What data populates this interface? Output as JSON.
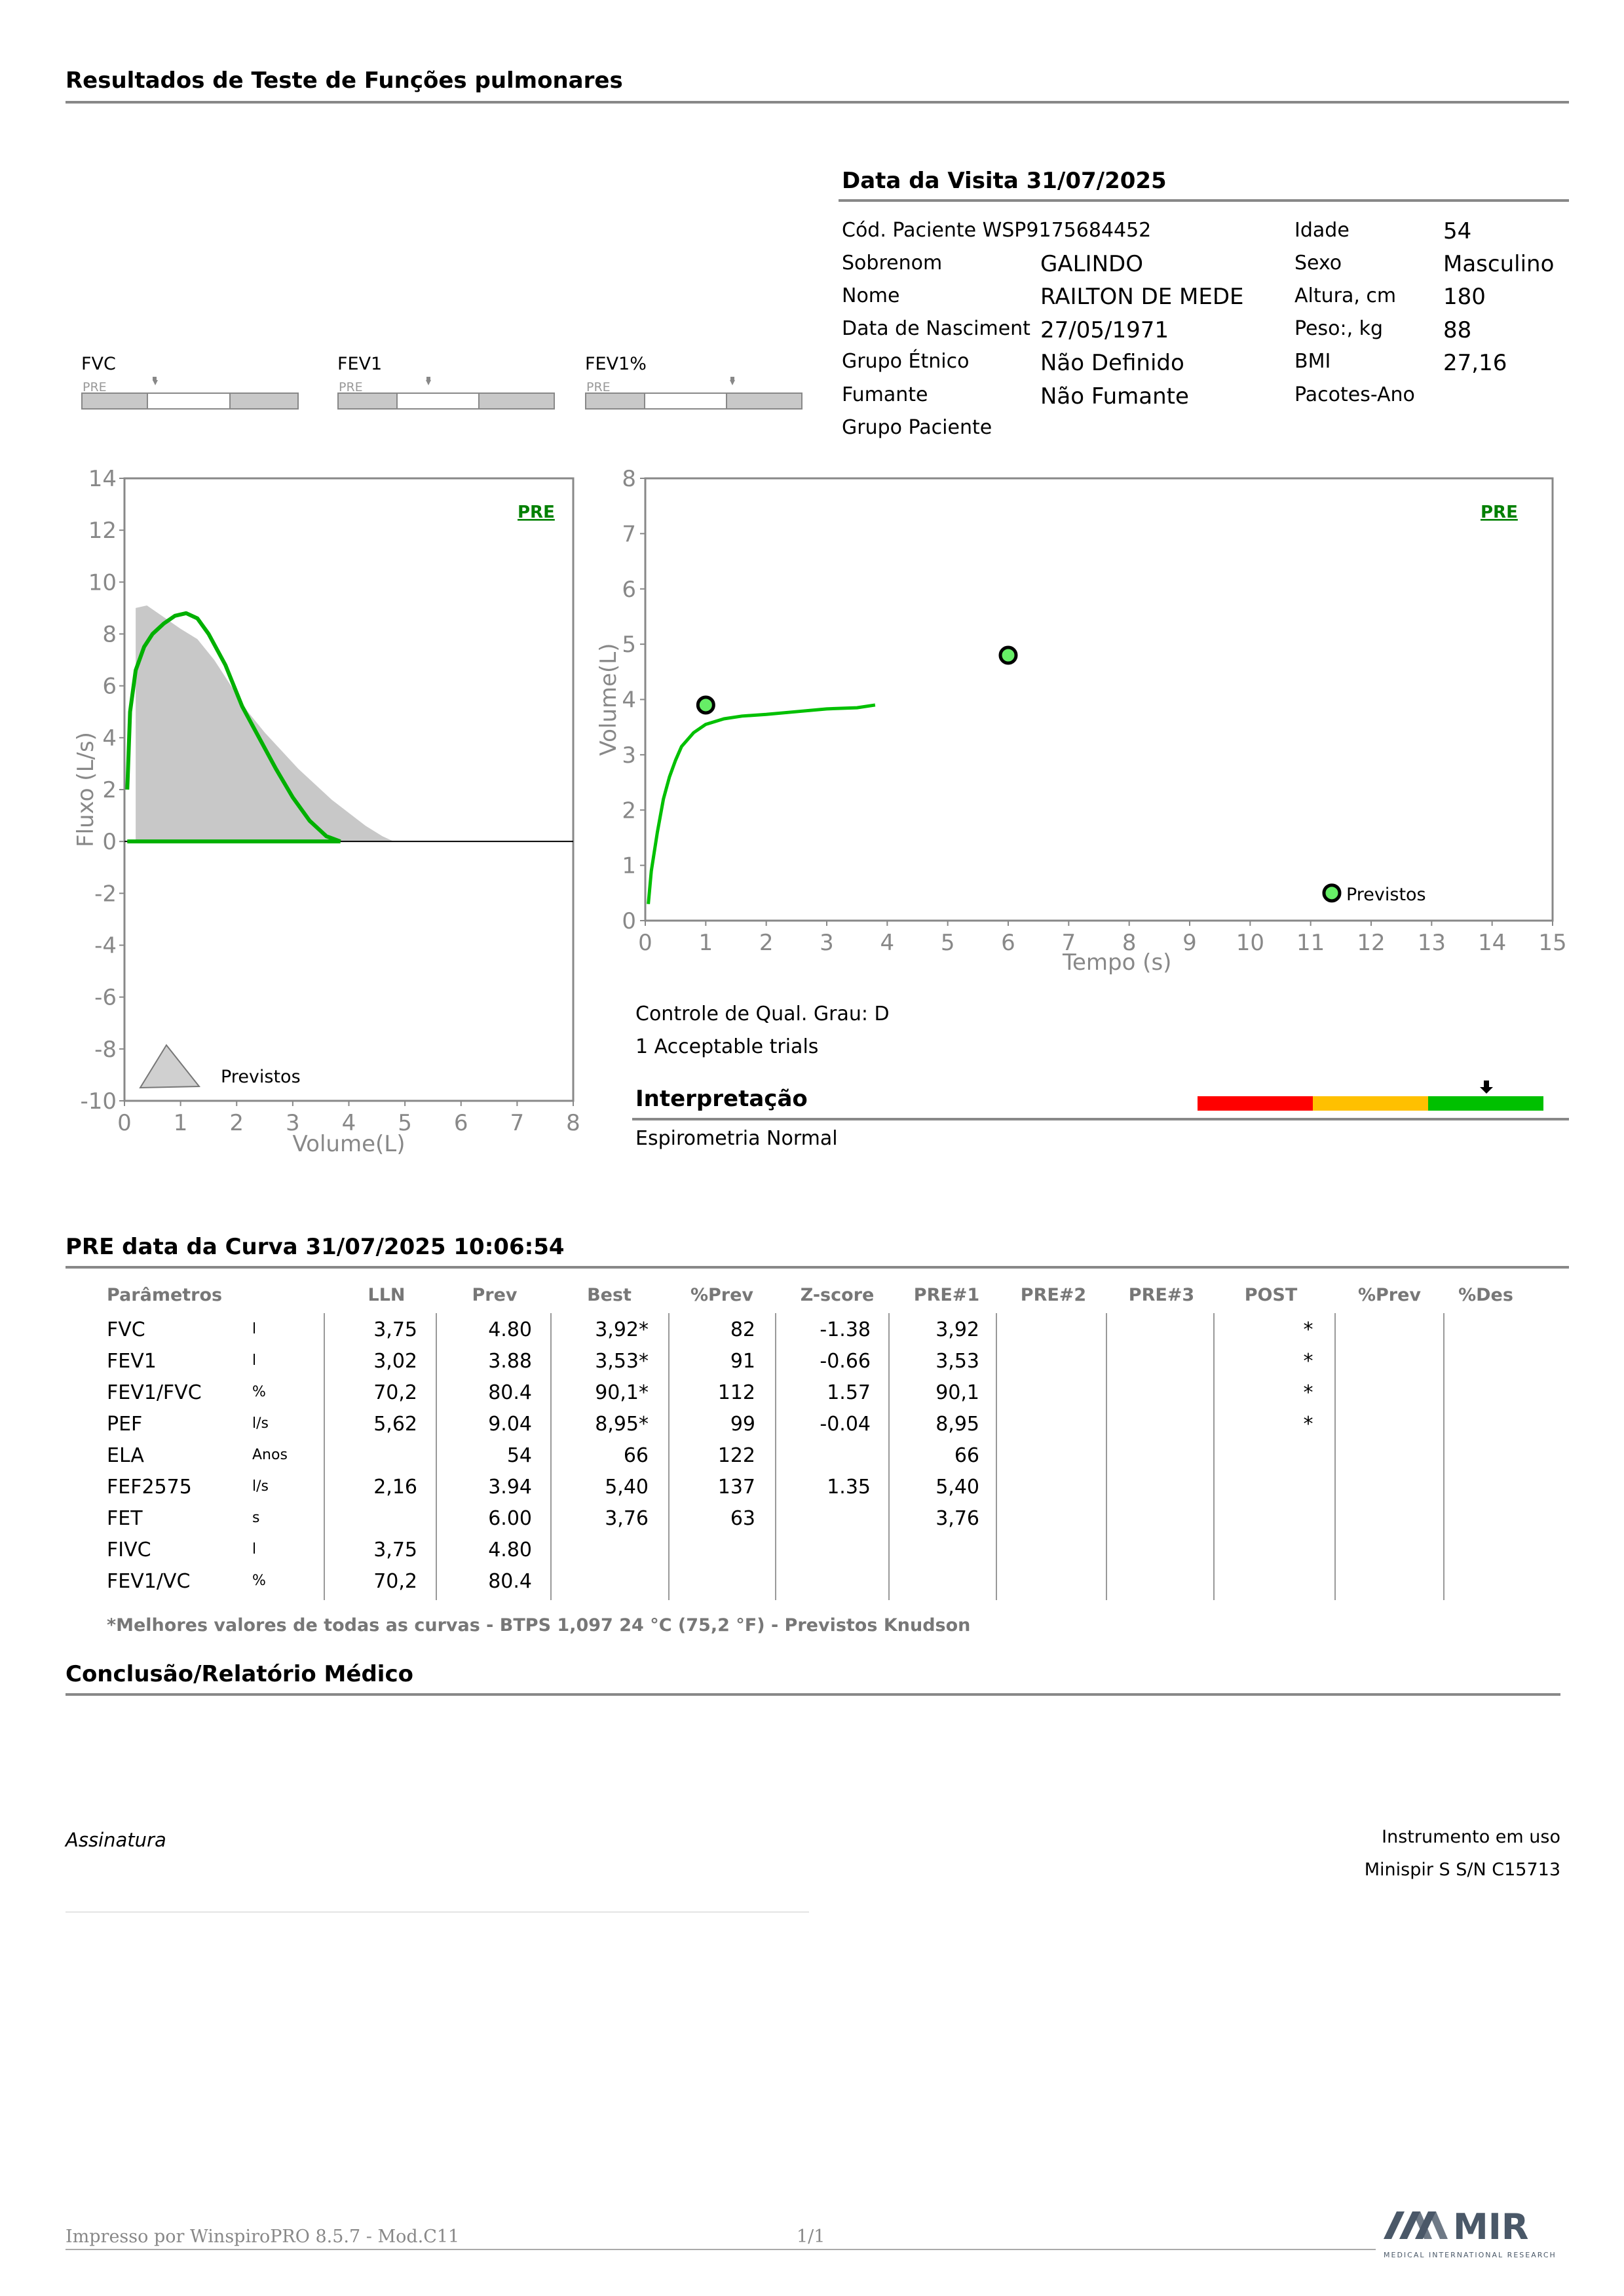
{
  "header": {
    "title": "Resultados de Teste de Funções pulmonares"
  },
  "visit": {
    "title": "Data da Visita 31/07/2025",
    "patient_code": "Cód. Paciente WSP9175684452",
    "surname_label": "Sobrenom",
    "surname": "GALINDO",
    "name_label": "Nome",
    "name": "RAILTON DE MEDE",
    "dob_label": "Data de Nasciment",
    "dob": "27/05/1971",
    "ethnic_label": "Grupo Étnico",
    "ethnic": "Não Definido",
    "smoker_label": "Fumante",
    "smoker": "Não Fumante",
    "group_label": "Grupo Paciente",
    "age_label": "Idade",
    "age": "54",
    "sex_label": "Sexo",
    "sex": "Masculino",
    "height_label": "Altura, cm",
    "height": "180",
    "weight_label": "Peso:, kg",
    "weight": "88",
    "bmi_label": "BMI",
    "bmi": "27,16",
    "packyears_label": "Pacotes-Ano"
  },
  "gauges": [
    {
      "label": "FVC",
      "pre": "PRE"
    },
    {
      "label": "FEV1",
      "pre": "PRE"
    },
    {
      "label": "FEV1%",
      "pre": "PRE"
    }
  ],
  "chart_data": [
    {
      "type": "line",
      "chart": "flow-volume",
      "badge": "PRE",
      "xlabel": "Volume(L)",
      "ylabel": "Fluxo (L/s)",
      "xlim": [
        0,
        8
      ],
      "ylim": [
        -10,
        14
      ],
      "x_ticks": [
        "0",
        "1",
        "2",
        "3",
        "4",
        "5",
        "6",
        "7",
        "8"
      ],
      "y_ticks": [
        "14",
        "12",
        "10",
        "8",
        "6",
        "4",
        "2",
        "0",
        "-2",
        "-4",
        "-6",
        "-8",
        "-10"
      ],
      "legend": "Previstos",
      "series": [
        {
          "x": [
            0.05,
            0.1,
            0.2,
            0.35,
            0.5,
            0.7,
            0.9,
            1.1,
            1.3,
            1.5,
            1.8,
            2.1,
            2.4,
            2.7,
            3.0,
            3.3,
            3.6,
            3.85
          ],
          "y": [
            2.0,
            5.0,
            6.6,
            7.5,
            8.0,
            8.4,
            8.7,
            8.8,
            8.6,
            8.0,
            6.8,
            5.2,
            4.0,
            2.8,
            1.7,
            0.8,
            0.2,
            0
          ]
        },
        {
          "x": [
            3.85,
            0.05
          ],
          "y": [
            0,
            0
          ]
        }
      ],
      "predicted_area": {
        "x": [
          0.2,
          0.4,
          0.6,
          0.8,
          1.0,
          1.3,
          1.6,
          1.9,
          2.2,
          2.5,
          2.8,
          3.1,
          3.4,
          3.7,
          4.0,
          4.3,
          4.6,
          4.8
        ],
        "y": [
          9.0,
          9.1,
          8.8,
          8.5,
          8.2,
          7.8,
          7.0,
          6.0,
          5.0,
          4.2,
          3.5,
          2.8,
          2.2,
          1.6,
          1.1,
          0.6,
          0.2,
          0
        ]
      }
    },
    {
      "type": "line",
      "chart": "volume-time",
      "badge": "PRE",
      "xlabel": "Tempo (s)",
      "ylabel": "Volume(L)",
      "xlim": [
        0,
        15
      ],
      "ylim": [
        0,
        8
      ],
      "x_ticks": [
        "0",
        "1",
        "2",
        "3",
        "4",
        "5",
        "6",
        "7",
        "8",
        "9",
        "10",
        "11",
        "12",
        "13",
        "14",
        "15"
      ],
      "y_ticks": [
        "8",
        "7",
        "6",
        "5",
        "4",
        "3",
        "2",
        "1",
        "0"
      ],
      "series": [
        {
          "x": [
            0.05,
            0.1,
            0.2,
            0.3,
            0.4,
            0.5,
            0.6,
            0.8,
            1.0,
            1.3,
            1.6,
            2.0,
            2.5,
            3.0,
            3.5,
            3.8
          ],
          "y": [
            0.3,
            0.9,
            1.6,
            2.2,
            2.6,
            2.9,
            3.15,
            3.4,
            3.55,
            3.65,
            3.7,
            3.73,
            3.78,
            3.83,
            3.85,
            3.9
          ]
        }
      ],
      "markers": [
        {
          "x": 1.0,
          "y": 3.9
        },
        {
          "x": 6.0,
          "y": 4.8
        },
        {
          "x": 11.35,
          "y": 0.5
        }
      ],
      "legend": "Previstos"
    }
  ],
  "quality": {
    "grade": "Controle de Qual. Grau: D",
    "trials": "1 Acceptable trials",
    "interpretation_title": "Interpretação",
    "interpretation": "Espirometria Normal",
    "scale_colors": [
      "#ff0000",
      "#ffc000",
      "#00c000"
    ]
  },
  "curve": {
    "title": "PRE data da Curva 31/07/2025   10:06:54",
    "headers": [
      "Parâmetros",
      "LLN",
      "Prev",
      "Best",
      "%Prev",
      "Z-score",
      "PRE#1",
      "PRE#2",
      "PRE#3",
      "POST",
      "%Prev",
      "%Des"
    ],
    "rows": [
      {
        "p": "FVC",
        "u": "l",
        "lln": "3,75",
        "prev": "4.80",
        "best": "3,92*",
        "pprev": "82",
        "z": "-1.38",
        "pre1": "3,92",
        "post": "*"
      },
      {
        "p": "FEV1",
        "u": "l",
        "lln": "3,02",
        "prev": "3.88",
        "best": "3,53*",
        "pprev": "91",
        "z": "-0.66",
        "pre1": "3,53",
        "post": "*"
      },
      {
        "p": "FEV1/FVC",
        "u": "%",
        "lln": "70,2",
        "prev": "80.4",
        "best": "90,1*",
        "pprev": "112",
        "z": "1.57",
        "pre1": "90,1",
        "post": "*"
      },
      {
        "p": "PEF",
        "u": "l/s",
        "lln": "5,62",
        "prev": "9.04",
        "best": "8,95*",
        "pprev": "99",
        "z": "-0.04",
        "pre1": "8,95",
        "post": "*"
      },
      {
        "p": "ELA",
        "u": "Anos",
        "lln": "",
        "prev": "54",
        "best": "66",
        "pprev": "122",
        "z": "",
        "pre1": "66",
        "post": ""
      },
      {
        "p": "FEF2575",
        "u": "l/s",
        "lln": "2,16",
        "prev": "3.94",
        "best": "5,40",
        "pprev": "137",
        "z": "1.35",
        "pre1": "5,40",
        "post": ""
      },
      {
        "p": "FET",
        "u": "s",
        "lln": "",
        "prev": "6.00",
        "best": "3,76",
        "pprev": "63",
        "z": "",
        "pre1": "3,76",
        "post": ""
      },
      {
        "p": "FIVC",
        "u": "l",
        "lln": "3,75",
        "prev": "4.80",
        "best": "",
        "pprev": "",
        "z": "",
        "pre1": "",
        "post": ""
      },
      {
        "p": "FEV1/VC",
        "u": "%",
        "lln": "70,2",
        "prev": "80.4",
        "best": "",
        "pprev": "",
        "z": "",
        "pre1": "",
        "post": ""
      }
    ],
    "footnote": "*Melhores valores de todas as curvas - BTPS  1,097  24 °C  (75,2 °F) - Previstos Knudson"
  },
  "conclusion": {
    "title": "Conclusão/Relatório Médico",
    "signature": "Assinatura",
    "instrument_label": "Instrumento em uso",
    "instrument": "Minispir S S/N C15713"
  },
  "footer": {
    "printed": "Impresso por WinspiroPRO  8.5.7 - Mod.C11",
    "page": "1/1",
    "logo": "MIR",
    "logo_sub": "MEDICAL INTERNATIONAL RESEARCH"
  }
}
